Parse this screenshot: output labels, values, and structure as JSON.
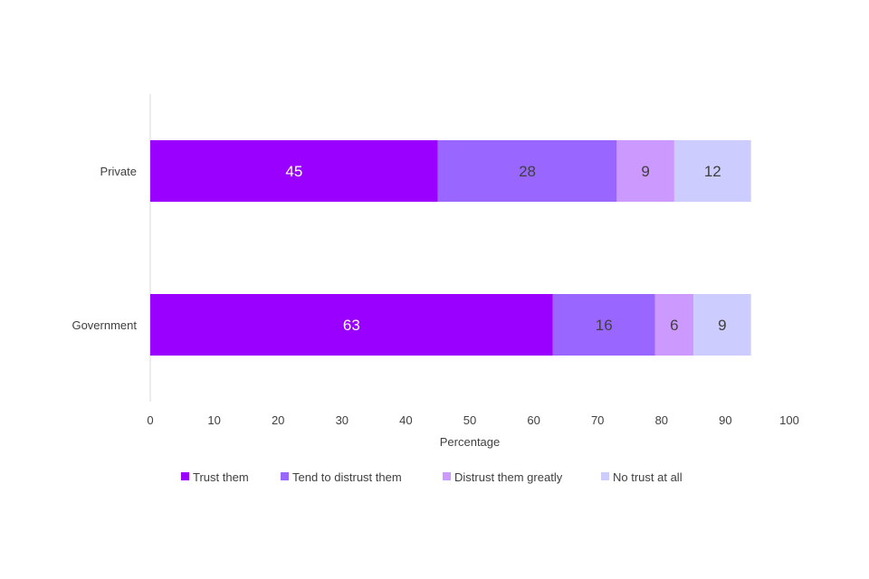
{
  "chart_data": {
    "type": "bar",
    "orientation": "horizontal",
    "stacked": true,
    "categories": [
      "Private",
      "Government"
    ],
    "series": [
      {
        "name": "Trust them",
        "values": [
          45,
          63
        ],
        "color": "#9900ff",
        "label_color": "#ffffff"
      },
      {
        "name": "Tend to distrust them",
        "values": [
          28,
          16
        ],
        "color": "#9966ff",
        "label_color": "#404040"
      },
      {
        "name": "Distrust them greatly",
        "values": [
          9,
          6
        ],
        "color": "#cc99ff",
        "label_color": "#404040"
      },
      {
        "name": "No trust at all",
        "values": [
          12,
          9
        ],
        "color": "#ccccff",
        "label_color": "#404040"
      }
    ],
    "xlabel": "Percentage",
    "ylabel": "",
    "xlim": [
      0,
      100
    ],
    "xticks": [
      "0",
      "10",
      "20",
      "30",
      "40",
      "50",
      "60",
      "70",
      "80",
      "90",
      "100"
    ],
    "grid": false,
    "legend_position": "bottom"
  }
}
